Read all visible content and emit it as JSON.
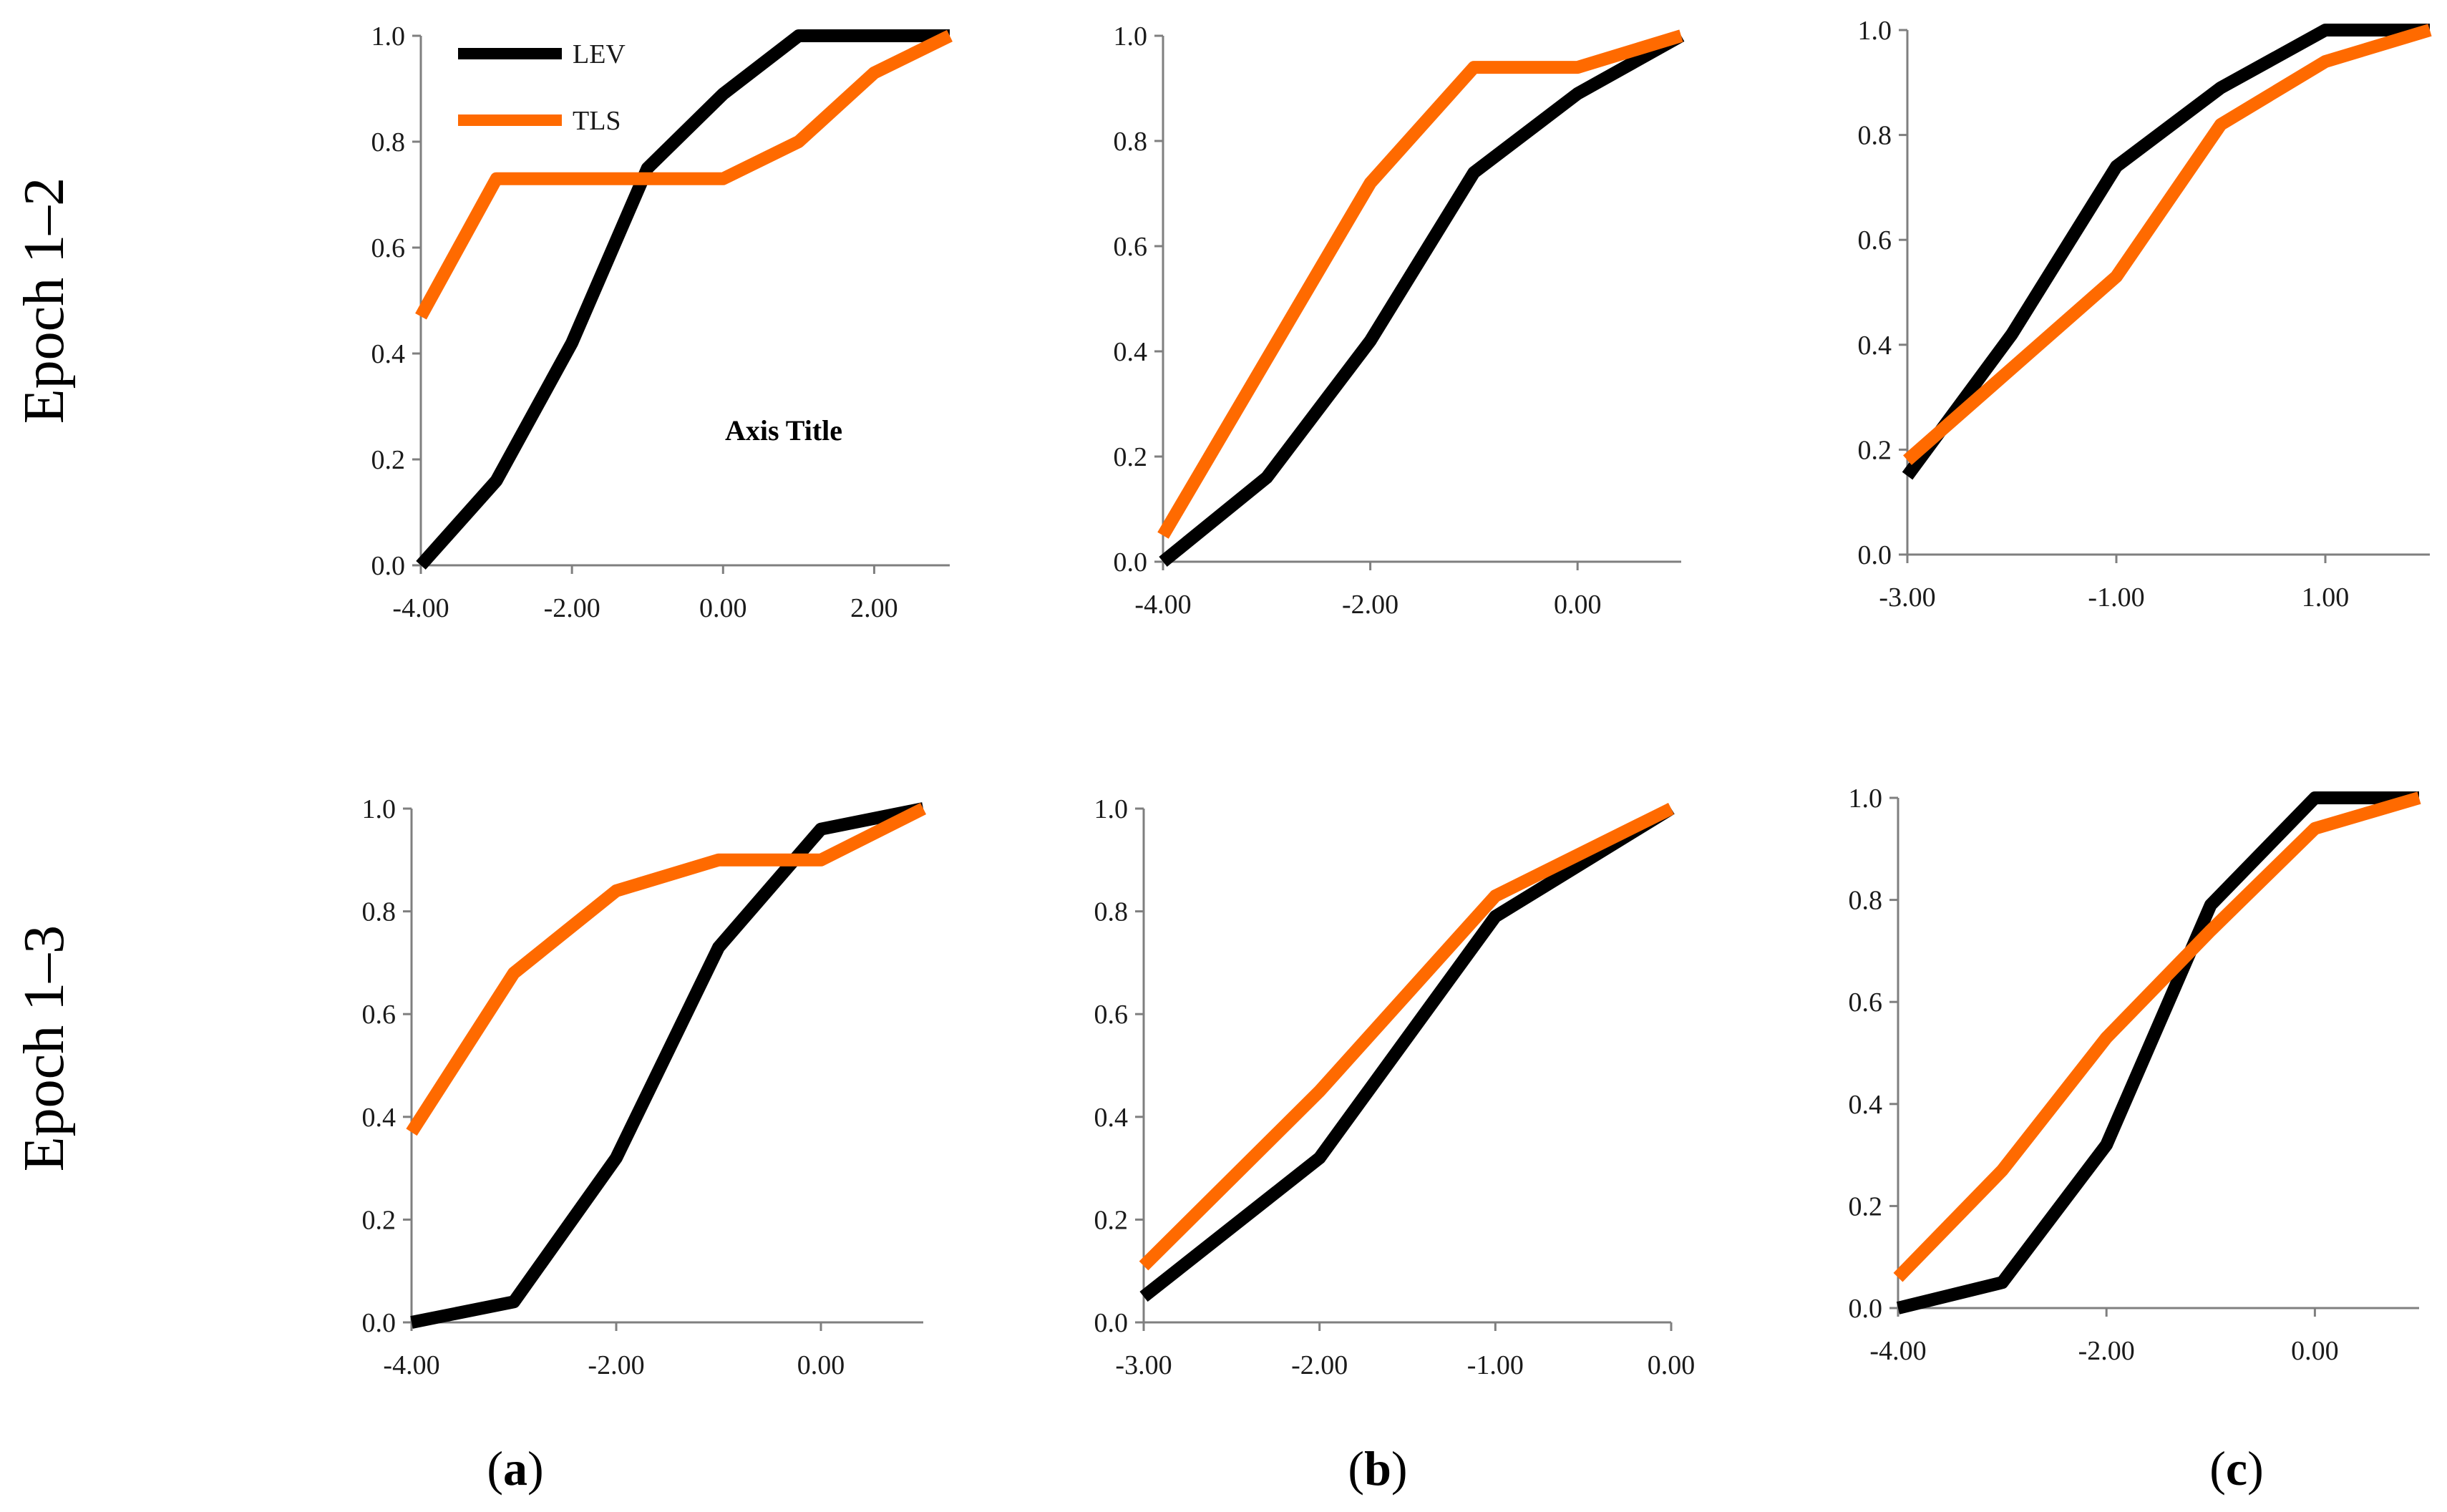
{
  "colors": {
    "LEV": "#000000",
    "TLS": "#ff6a00",
    "axis": "#7f7f7f"
  },
  "rows": [
    {
      "label": "Epoch 1–2"
    },
    {
      "label": "Epoch 1–3"
    }
  ],
  "columns": [
    {
      "prefix": "(",
      "letter": "a",
      "suffix": ")"
    },
    {
      "prefix": "(",
      "letter": "b",
      "suffix": ")"
    },
    {
      "prefix": "(",
      "letter": "c",
      "suffix": ")"
    }
  ],
  "legend": [
    {
      "name": "LEV",
      "color": "#000000"
    },
    {
      "name": "TLS",
      "color": "#ff6a00"
    }
  ],
  "axis_title_text": "Axis Title",
  "chart_data": [
    {
      "type": "line",
      "panel": "Epoch 1–2 (a)",
      "xlim": [
        -4,
        3
      ],
      "ylim": [
        0,
        1
      ],
      "xticks": [
        "-4.00",
        "-2.00",
        "0.00",
        "2.00"
      ],
      "yticks": [
        "0.0",
        "0.2",
        "0.4",
        "0.6",
        "0.8",
        "1.0"
      ],
      "annotation": "Axis Title",
      "series": [
        {
          "name": "LEV",
          "x": [
            -4,
            -3,
            -2,
            -1,
            0,
            1,
            2,
            3
          ],
          "y": [
            0.0,
            0.16,
            0.42,
            0.75,
            0.89,
            1.0,
            1.0,
            1.0
          ]
        },
        {
          "name": "TLS",
          "x": [
            -4,
            -3,
            -2,
            -1,
            0,
            1,
            2,
            3
          ],
          "y": [
            0.47,
            0.73,
            0.73,
            0.73,
            0.73,
            0.8,
            0.93,
            1.0
          ]
        }
      ]
    },
    {
      "type": "line",
      "panel": "Epoch 1–2 (b)",
      "xlim": [
        -4,
        1
      ],
      "ylim": [
        0,
        1
      ],
      "xticks": [
        "-4.00",
        "-2.00",
        "0.00"
      ],
      "yticks": [
        "0.0",
        "0.2",
        "0.4",
        "0.6",
        "0.8",
        "1.0"
      ],
      "series": [
        {
          "name": "LEV",
          "x": [
            -4,
            -3,
            -2,
            -1,
            0,
            1
          ],
          "y": [
            0.0,
            0.16,
            0.42,
            0.74,
            0.89,
            1.0
          ]
        },
        {
          "name": "TLS",
          "x": [
            -4,
            -2,
            -1,
            0,
            1
          ],
          "y": [
            0.05,
            0.72,
            0.94,
            0.94,
            1.0
          ]
        }
      ]
    },
    {
      "type": "line",
      "panel": "Epoch 1–2 (c)",
      "xlim": [
        -3,
        2
      ],
      "ylim": [
        0,
        1
      ],
      "xticks": [
        "-3.00",
        "-1.00",
        "1.00"
      ],
      "yticks": [
        "0.0",
        "0.2",
        "0.4",
        "0.6",
        "0.8",
        "1.0"
      ],
      "series": [
        {
          "name": "LEV",
          "x": [
            -3,
            -2,
            -1,
            0,
            1,
            2
          ],
          "y": [
            0.15,
            0.42,
            0.74,
            0.89,
            1.0,
            1.0
          ]
        },
        {
          "name": "TLS",
          "x": [
            -3,
            -1,
            0,
            1,
            2
          ],
          "y": [
            0.18,
            0.53,
            0.82,
            0.94,
            1.0
          ]
        }
      ]
    },
    {
      "type": "line",
      "panel": "Epoch 1–3 (a)",
      "xlim": [
        -4,
        1
      ],
      "ylim": [
        0,
        1
      ],
      "xticks": [
        "-4.00",
        "-2.00",
        "0.00"
      ],
      "yticks": [
        "0.0",
        "0.2",
        "0.4",
        "0.6",
        "0.8",
        "1.0"
      ],
      "series": [
        {
          "name": "LEV",
          "x": [
            -4,
            -3,
            -2,
            -1,
            0,
            1
          ],
          "y": [
            0.0,
            0.04,
            0.32,
            0.73,
            0.96,
            1.0
          ]
        },
        {
          "name": "TLS",
          "x": [
            -4,
            -3,
            -2,
            -1,
            0,
            1
          ],
          "y": [
            0.37,
            0.68,
            0.84,
            0.9,
            0.9,
            1.0
          ]
        }
      ]
    },
    {
      "type": "line",
      "panel": "Epoch 1–3 (b)",
      "xlim": [
        -3,
        0
      ],
      "ylim": [
        0,
        1
      ],
      "xticks": [
        "-3.00",
        "-2.00",
        "-1.00",
        "0.00"
      ],
      "yticks": [
        "0.0",
        "0.2",
        "0.4",
        "0.6",
        "0.8",
        "1.0"
      ],
      "series": [
        {
          "name": "LEV",
          "x": [
            -3,
            -2,
            -1,
            0
          ],
          "y": [
            0.05,
            0.32,
            0.79,
            1.0
          ]
        },
        {
          "name": "TLS",
          "x": [
            -3,
            -2,
            -1,
            0
          ],
          "y": [
            0.11,
            0.45,
            0.83,
            1.0
          ]
        }
      ]
    },
    {
      "type": "line",
      "panel": "Epoch 1–3 (c)",
      "xlim": [
        -4,
        1
      ],
      "ylim": [
        0,
        1
      ],
      "xticks": [
        "-4.00",
        "-2.00",
        "0.00"
      ],
      "yticks": [
        "0.0",
        "0.2",
        "0.4",
        "0.6",
        "0.8",
        "1.0"
      ],
      "series": [
        {
          "name": "LEV",
          "x": [
            -4,
            -3,
            -2,
            -1,
            0,
            1
          ],
          "y": [
            0.0,
            0.05,
            0.32,
            0.79,
            1.0,
            1.0
          ]
        },
        {
          "name": "TLS",
          "x": [
            -4,
            -3,
            -2,
            -1,
            0,
            1
          ],
          "y": [
            0.06,
            0.27,
            0.53,
            0.74,
            0.94,
            1.0
          ]
        }
      ]
    }
  ]
}
